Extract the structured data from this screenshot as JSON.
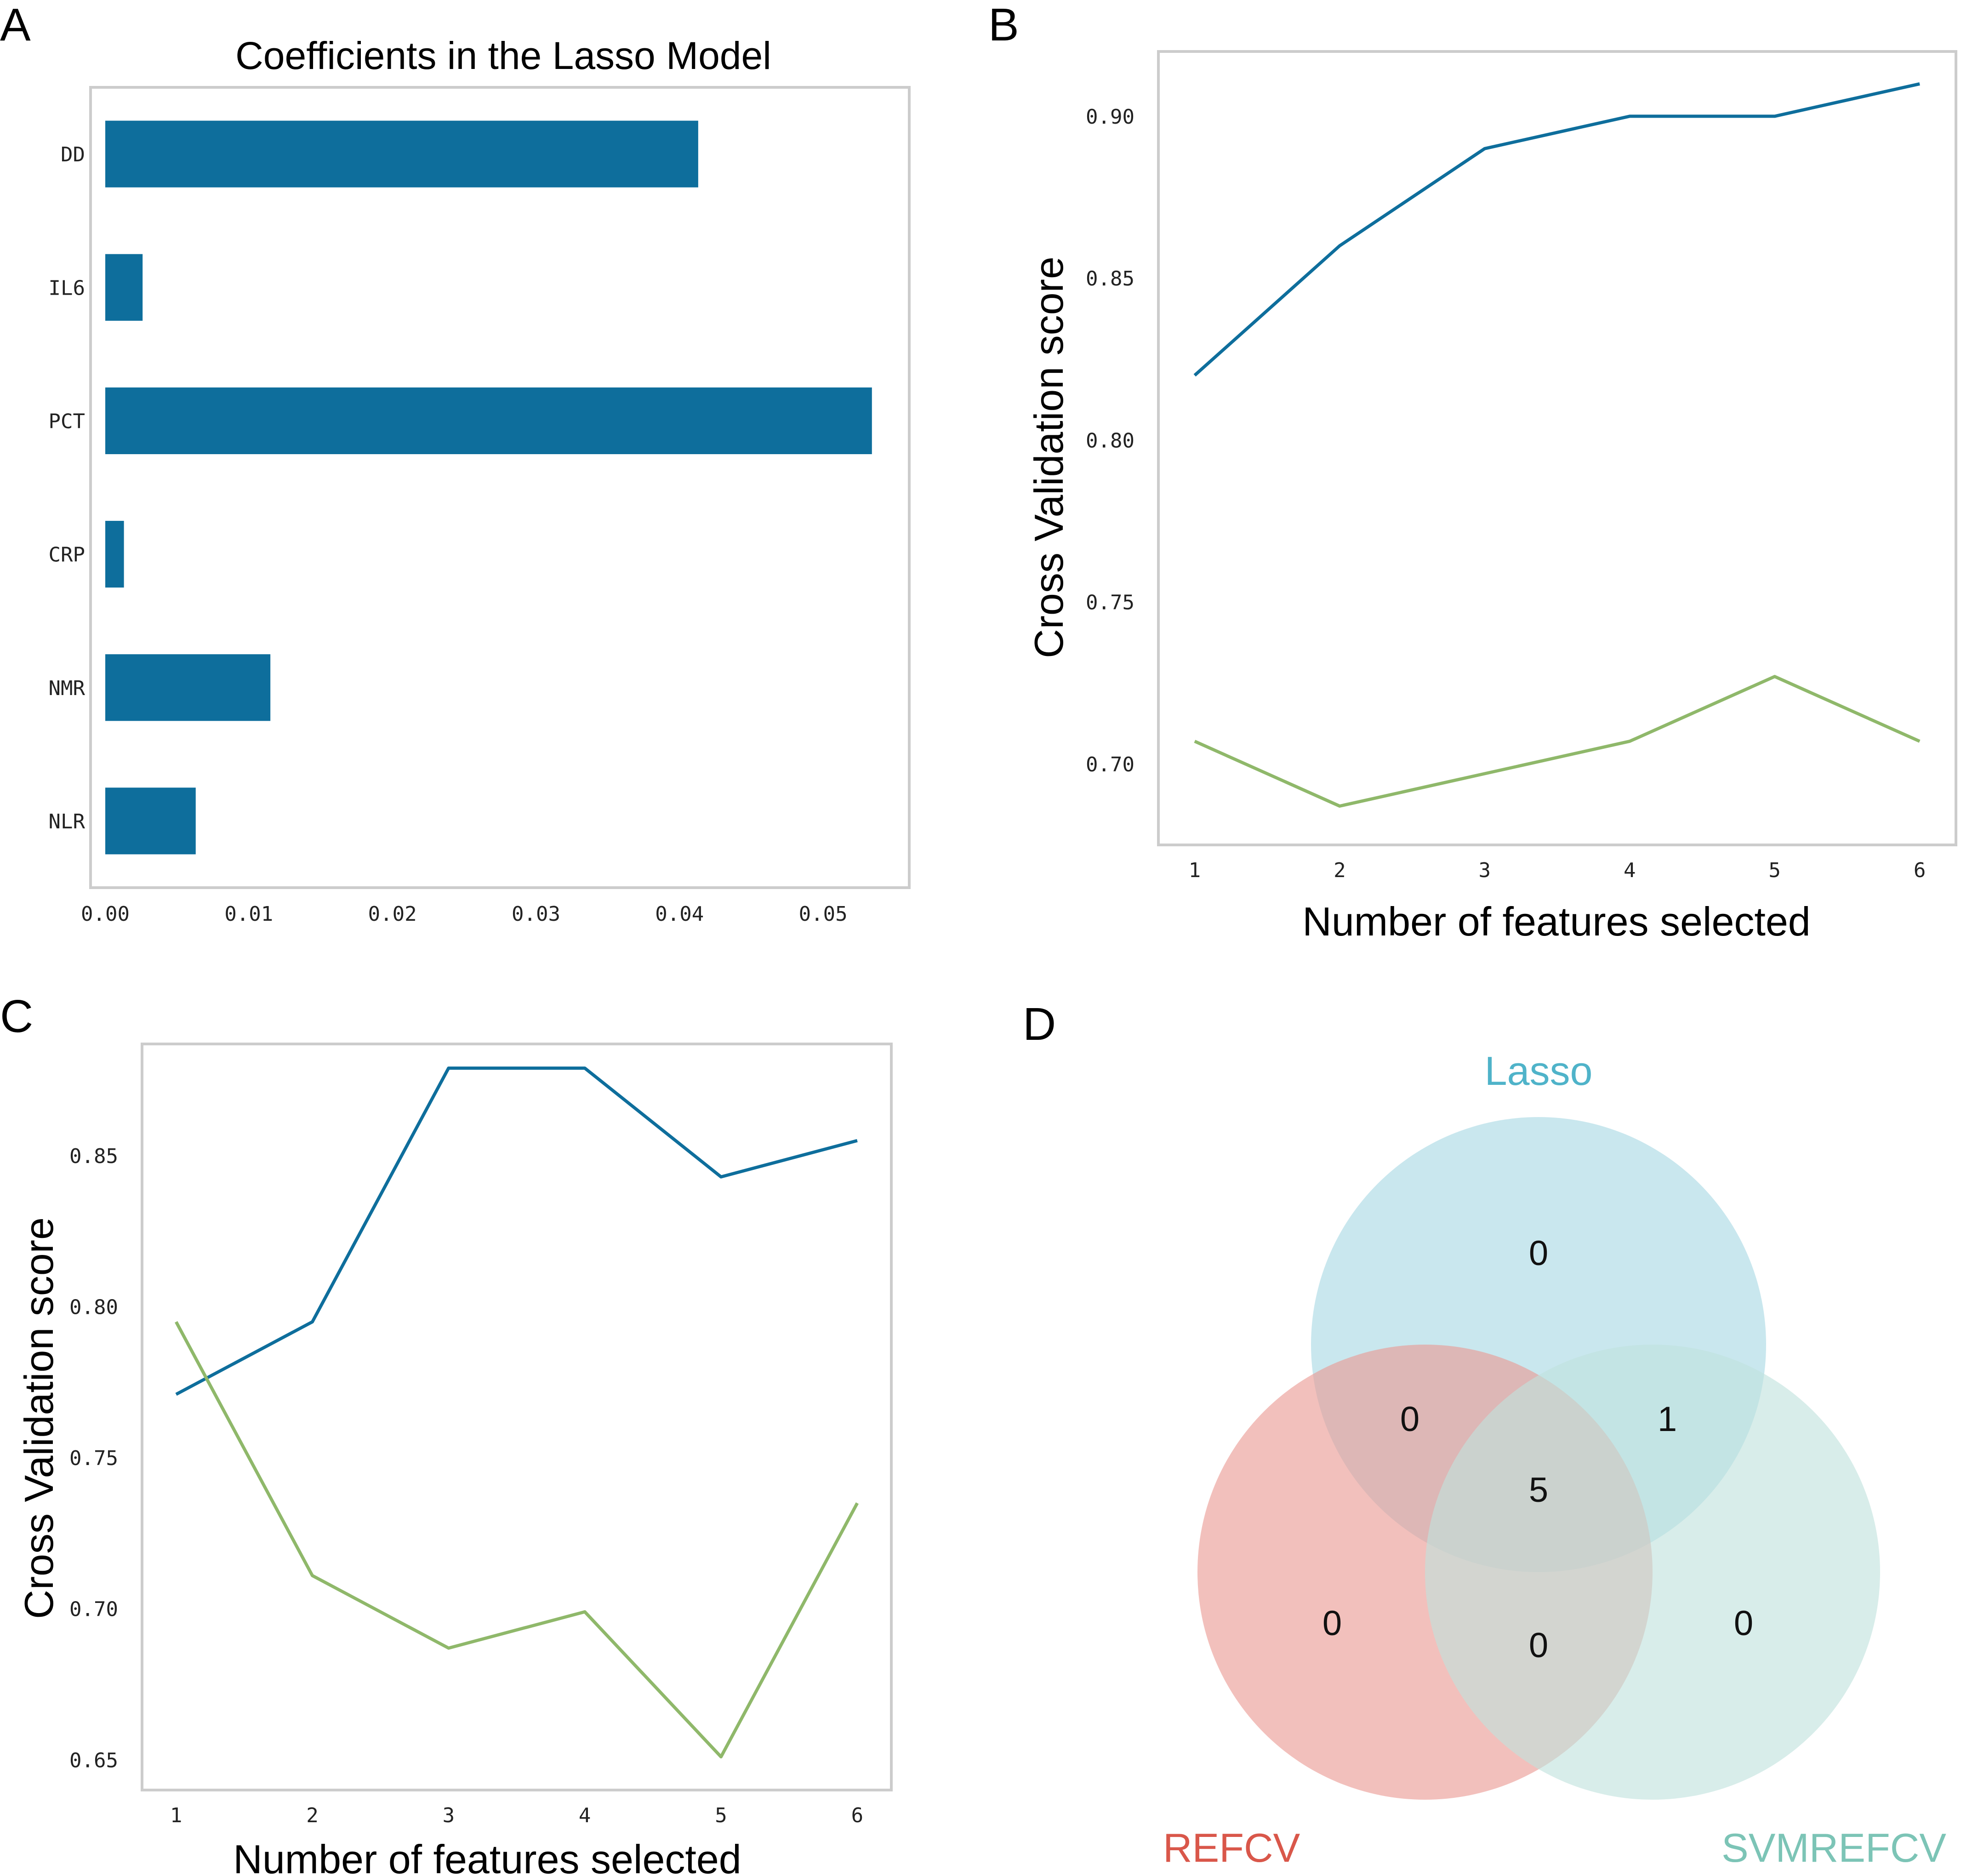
{
  "panels": {
    "a": "A",
    "b": "B",
    "c": "C",
    "d": "D"
  },
  "colors": {
    "bar": "#0e6e9c",
    "series1": "#0e6e9c",
    "series2": "#8fb86a",
    "lasso": "#4fb3c9",
    "refcv": "#d9574a",
    "svmrefcv": "#7cc4b6",
    "circle_lasso": "#a8d8e3",
    "circle_refcv": "#ea9993",
    "circle_svm": "#c0e2dd"
  },
  "chart_data": [
    {
      "type": "bar",
      "orientation": "horizontal",
      "title": "Coefficients in the Lasso Model",
      "xlabel": "",
      "ylabel": "",
      "categories": [
        "DD",
        "IL6",
        "PCT",
        "CRP",
        "NMR",
        "NLR"
      ],
      "values": [
        0.0413,
        0.0026,
        0.0534,
        0.0013,
        0.0115,
        0.0063
      ],
      "xlim": [
        0.0,
        0.056
      ],
      "xticks": [
        0.0,
        0.01,
        0.02,
        0.03,
        0.04,
        0.05
      ],
      "xtick_labels": [
        "0.00",
        "0.01",
        "0.02",
        "0.03",
        "0.04",
        "0.05"
      ],
      "grid": false
    },
    {
      "type": "line",
      "title": "",
      "xlabel": "Number of features selected",
      "ylabel": "Cross Validation score",
      "x": [
        1,
        2,
        3,
        4,
        5,
        6
      ],
      "series": [
        {
          "name": "series1",
          "values": [
            0.82,
            0.86,
            0.89,
            0.9,
            0.9,
            0.91
          ]
        },
        {
          "name": "series2",
          "values": [
            0.707,
            0.687,
            0.697,
            0.707,
            0.727,
            0.707
          ]
        }
      ],
      "xlim": [
        0.75,
        6.25
      ],
      "ylim": [
        0.675,
        0.92
      ],
      "xticks": [
        1,
        2,
        3,
        4,
        5,
        6
      ],
      "xtick_labels": [
        "1",
        "2",
        "3",
        "4",
        "5",
        "6"
      ],
      "yticks": [
        0.7,
        0.75,
        0.8,
        0.85,
        0.9
      ],
      "ytick_labels": [
        "0.70",
        "0.75",
        "0.80",
        "0.85",
        "0.90"
      ],
      "grid": false
    },
    {
      "type": "line",
      "title": "",
      "xlabel": "Number of features selected",
      "ylabel": "Cross Validation score",
      "x": [
        1,
        2,
        3,
        4,
        5,
        6
      ],
      "series": [
        {
          "name": "series1",
          "values": [
            0.771,
            0.795,
            0.879,
            0.879,
            0.843,
            0.855
          ]
        },
        {
          "name": "series2",
          "values": [
            0.795,
            0.711,
            0.687,
            0.699,
            0.651,
            0.735
          ]
        }
      ],
      "xlim": [
        0.75,
        6.25
      ],
      "ylim": [
        0.64,
        0.887
      ],
      "xticks": [
        1,
        2,
        3,
        4,
        5,
        6
      ],
      "xtick_labels": [
        "1",
        "2",
        "3",
        "4",
        "5",
        "6"
      ],
      "yticks": [
        0.65,
        0.7,
        0.75,
        0.8,
        0.85
      ],
      "ytick_labels": [
        "0.65",
        "0.70",
        "0.75",
        "0.80",
        "0.85"
      ],
      "grid": false
    }
  ],
  "venn": {
    "sets": [
      "Lasso",
      "REFCV",
      "SVMREFCV"
    ],
    "regions": {
      "lasso_only": "0",
      "refcv_only": "0",
      "svm_only": "0",
      "lasso_refcv": "0",
      "lasso_svm": "1",
      "refcv_svm": "0",
      "all": "5"
    }
  }
}
